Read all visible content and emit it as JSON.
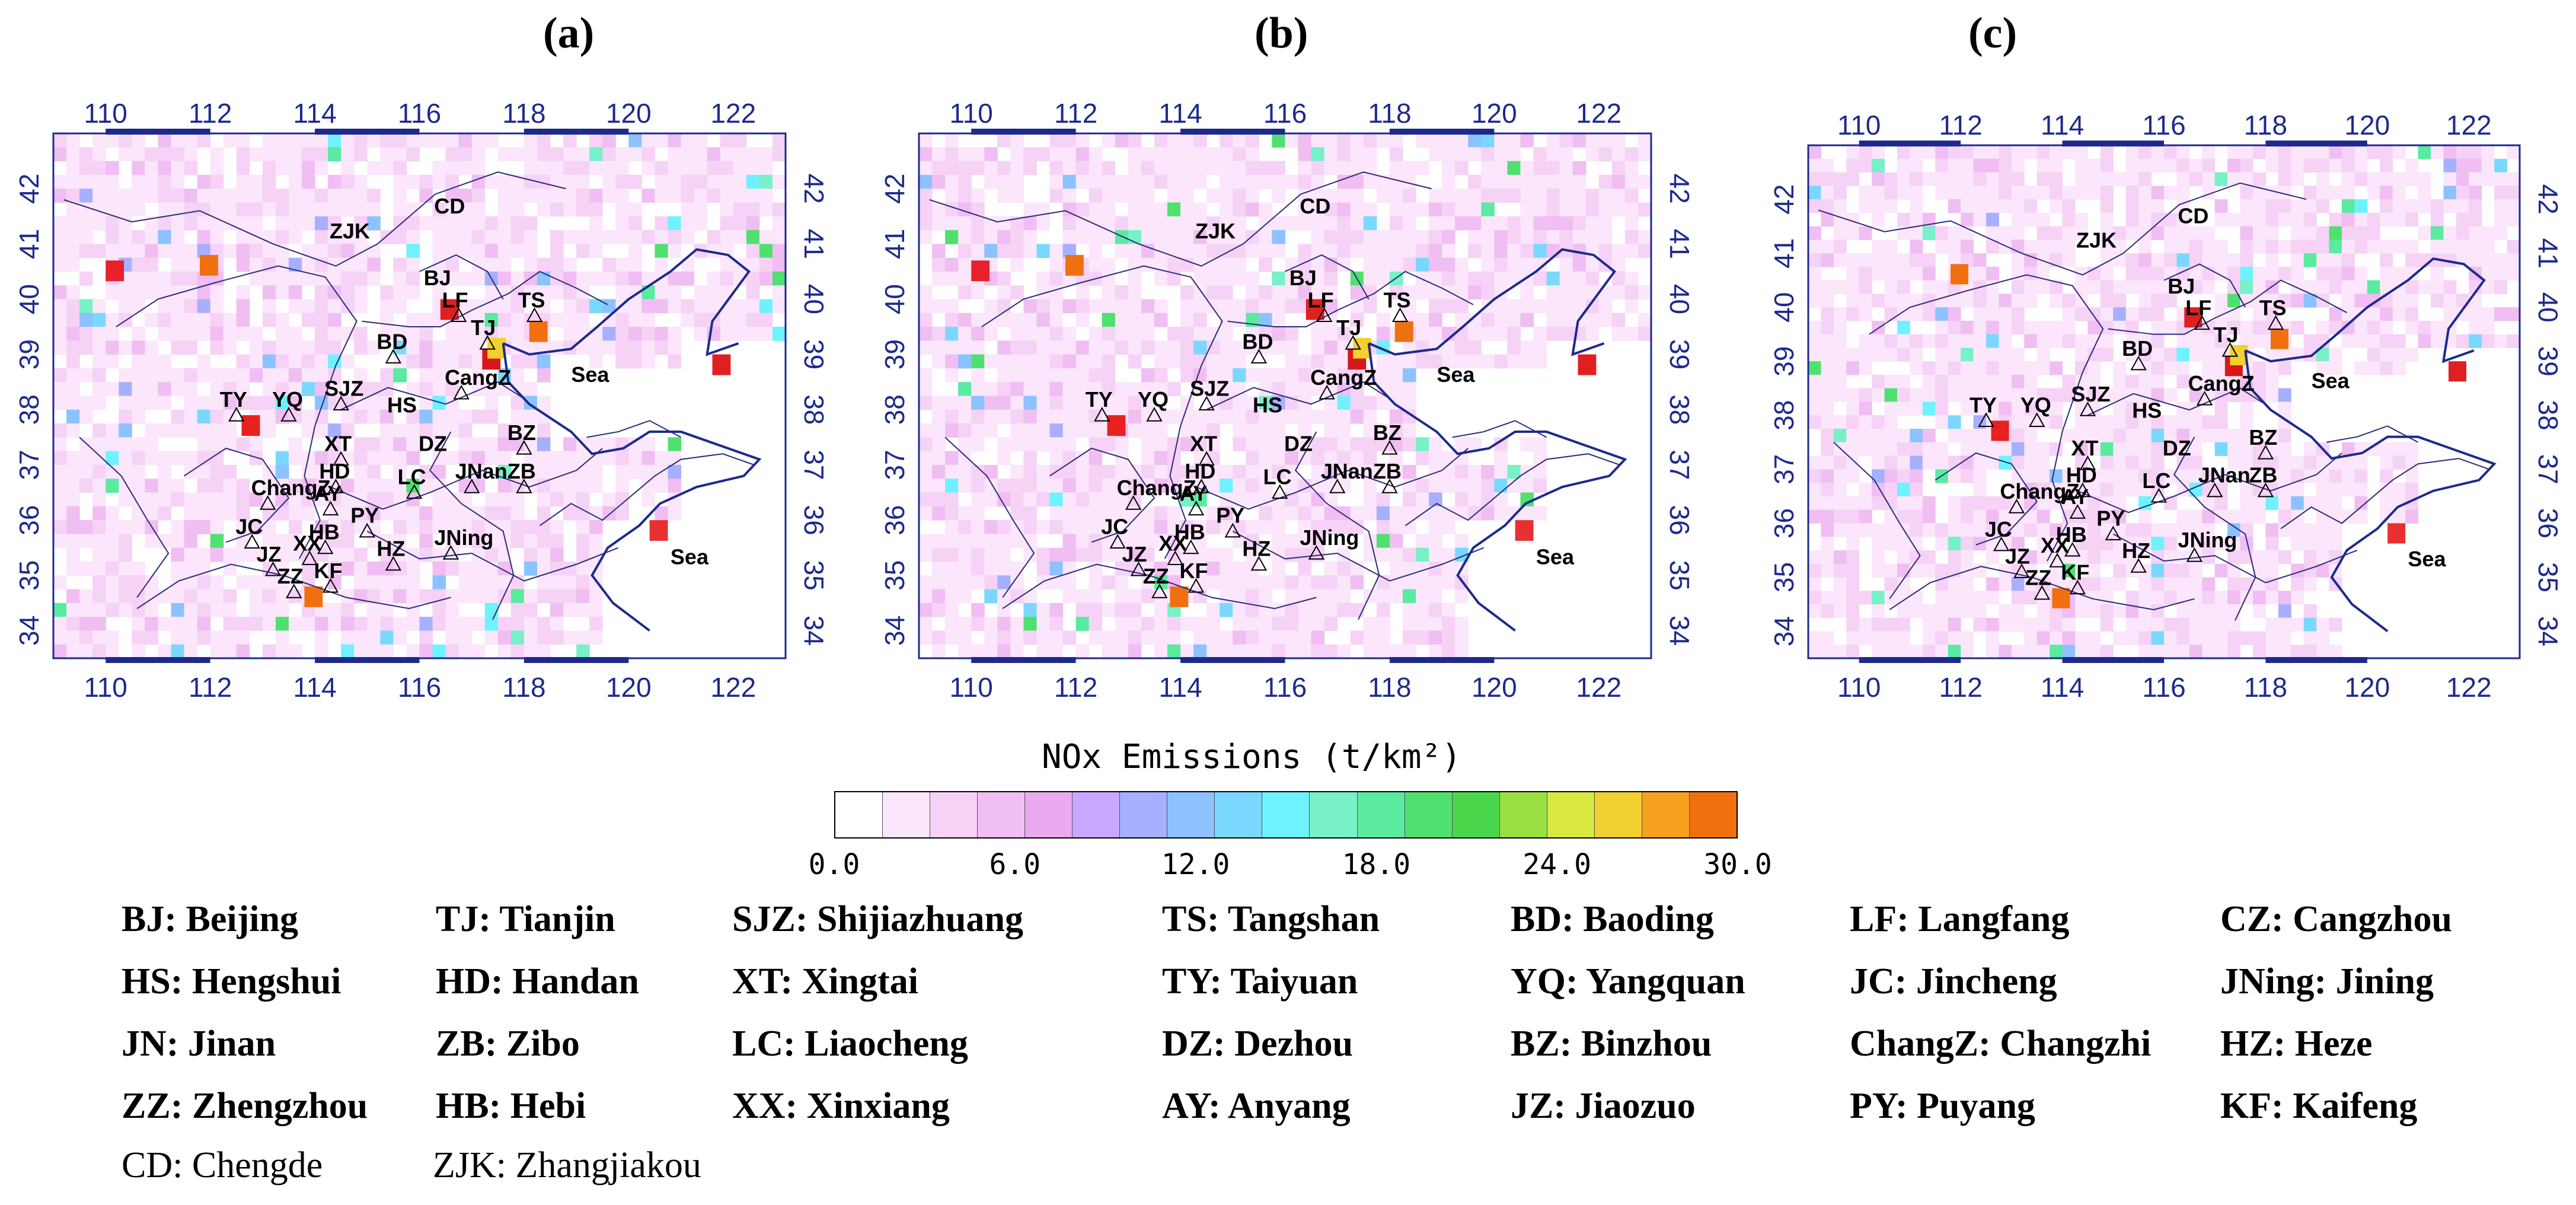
{
  "panels": [
    {
      "label": "(a)",
      "variant": "a"
    },
    {
      "label": "(b)",
      "variant": "b"
    },
    {
      "label": "(c)",
      "variant": "c"
    }
  ],
  "map": {
    "lon_ticks": [
      "110",
      "112",
      "114",
      "116",
      "118",
      "120",
      "122"
    ],
    "lat_ticks": [
      "34",
      "35",
      "36",
      "37",
      "38",
      "39",
      "40",
      "41",
      "42"
    ],
    "sea_labels": [
      "Sea",
      "Sea"
    ],
    "cities": [
      {
        "code": "CD",
        "lon": 116.6,
        "lat": 41.4,
        "marker": false
      },
      {
        "code": "ZJK",
        "lon": 114.6,
        "lat": 40.95,
        "marker": false
      },
      {
        "code": "BJ",
        "lon": 116.4,
        "lat": 40.1,
        "marker": false
      },
      {
        "code": "LF",
        "lon": 116.75,
        "lat": 39.7,
        "marker": true
      },
      {
        "code": "TJ",
        "lon": 117.3,
        "lat": 39.2,
        "marker": true
      },
      {
        "code": "TS",
        "lon": 118.2,
        "lat": 39.7,
        "marker": true
      },
      {
        "code": "BD",
        "lon": 115.5,
        "lat": 38.95,
        "marker": true
      },
      {
        "code": "SJZ",
        "lon": 114.5,
        "lat": 38.1,
        "marker": true
      },
      {
        "code": "CangZ",
        "lon": 116.8,
        "lat": 38.3,
        "marker": true
      },
      {
        "code": "TY",
        "lon": 112.5,
        "lat": 37.9,
        "marker": true
      },
      {
        "code": "YQ",
        "lon": 113.5,
        "lat": 37.9,
        "marker": true
      },
      {
        "code": "HS",
        "lon": 115.7,
        "lat": 37.8,
        "marker": false
      },
      {
        "code": "XT",
        "lon": 114.5,
        "lat": 37.1,
        "marker": true
      },
      {
        "code": "DZ",
        "lon": 116.3,
        "lat": 37.1,
        "marker": false
      },
      {
        "code": "BZ",
        "lon": 118.0,
        "lat": 37.3,
        "marker": true
      },
      {
        "code": "HD",
        "lon": 114.4,
        "lat": 36.6,
        "marker": true
      },
      {
        "code": "ChangZ",
        "lon": 113.1,
        "lat": 36.3,
        "marker": true
      },
      {
        "code": "AY",
        "lon": 114.3,
        "lat": 36.2,
        "marker": true
      },
      {
        "code": "LC",
        "lon": 115.9,
        "lat": 36.5,
        "marker": true
      },
      {
        "code": "JNan",
        "lon": 117.0,
        "lat": 36.6,
        "marker": true
      },
      {
        "code": "ZB",
        "lon": 118.0,
        "lat": 36.6,
        "marker": true
      },
      {
        "code": "PY",
        "lon": 115.0,
        "lat": 35.8,
        "marker": true
      },
      {
        "code": "JC",
        "lon": 112.8,
        "lat": 35.6,
        "marker": true
      },
      {
        "code": "HB",
        "lon": 114.2,
        "lat": 35.5,
        "marker": true
      },
      {
        "code": "XX",
        "lon": 113.9,
        "lat": 35.3,
        "marker": true
      },
      {
        "code": "HZ",
        "lon": 115.5,
        "lat": 35.2,
        "marker": true
      },
      {
        "code": "JNing",
        "lon": 116.6,
        "lat": 35.4,
        "marker": true
      },
      {
        "code": "JZ",
        "lon": 113.2,
        "lat": 35.1,
        "marker": true
      },
      {
        "code": "ZZ",
        "lon": 113.6,
        "lat": 34.7,
        "marker": true
      },
      {
        "code": "KF",
        "lon": 114.3,
        "lat": 34.8,
        "marker": true
      }
    ]
  },
  "colorbar": {
    "title": "NOx Emissions (t/km²)",
    "ticks": [
      "0.0",
      "6.0",
      "12.0",
      "18.0",
      "24.0",
      "30.0"
    ],
    "colors": [
      "#ffffff",
      "#fbe6fb",
      "#f6d2f6",
      "#f0bef2",
      "#eaaaf0",
      "#c8a8ff",
      "#a6b0ff",
      "#8cc2ff",
      "#7ad8ff",
      "#6ef2ff",
      "#78f0c8",
      "#5aeaa0",
      "#50e070",
      "#4ad64a",
      "#9ae040",
      "#d8e840",
      "#f2d030",
      "#f6a020",
      "#f07010"
    ]
  },
  "abbreviations": [
    [
      "BJ: Beijing",
      "TJ: Tianjin",
      "SJZ: Shijiazhuang",
      "TS: Tangshan",
      "BD: Baoding",
      "LF: Langfang",
      "CZ: Cangzhou"
    ],
    [
      "HS: Hengshui",
      "HD: Handan",
      "XT: Xingtai",
      "TY: Taiyuan",
      "YQ: Yangquan",
      "JC: Jincheng",
      "JNing: Jining"
    ],
    [
      "JN: Jinan",
      "ZB: Zibo",
      "LC: Liaocheng",
      "DZ: Dezhou",
      "BZ: Binzhou",
      "ChangZ: Changzhi",
      "HZ: Heze"
    ],
    [
      "ZZ: Zhengzhou",
      "HB: Hebi",
      "XX: Xinxiang",
      "AY: Anyang",
      "JZ: Jiaozuo",
      "PY: Puyang",
      "KF: Kaifeng"
    ]
  ],
  "abbreviations_plain": [
    "CD: Chengde",
    "ZJK: Zhangjiakou"
  ]
}
